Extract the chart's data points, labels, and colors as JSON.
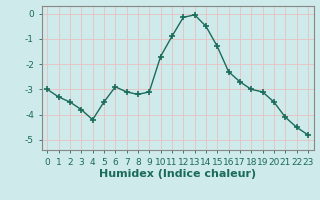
{
  "x": [
    0,
    1,
    2,
    3,
    4,
    5,
    6,
    7,
    8,
    9,
    10,
    11,
    12,
    13,
    14,
    15,
    16,
    17,
    18,
    19,
    20,
    21,
    22,
    23
  ],
  "y": [
    -3.0,
    -3.3,
    -3.5,
    -3.8,
    -4.2,
    -3.5,
    -2.9,
    -3.1,
    -3.2,
    -3.1,
    -1.7,
    -0.9,
    -0.15,
    -0.05,
    -0.5,
    -1.3,
    -2.3,
    -2.7,
    -3.0,
    -3.1,
    -3.5,
    -4.1,
    -4.5,
    -4.8
  ],
  "xlabel": "Humidex (Indice chaleur)",
  "xlim": [
    -0.5,
    23.5
  ],
  "ylim": [
    -5.4,
    0.3
  ],
  "yticks": [
    0,
    -1,
    -2,
    -3,
    -4,
    -5
  ],
  "xticks": [
    0,
    1,
    2,
    3,
    4,
    5,
    6,
    7,
    8,
    9,
    10,
    11,
    12,
    13,
    14,
    15,
    16,
    17,
    18,
    19,
    20,
    21,
    22,
    23
  ],
  "line_color": "#1a6b5a",
  "marker": "+",
  "marker_size": 4,
  "marker_lw": 1.2,
  "bg_color": "#ceeaea",
  "grid_color_major": "#e8c0c0",
  "grid_color_minor": "#e8c0c0",
  "tick_label_size": 6.5,
  "xlabel_size": 8,
  "xlabel_weight": "bold",
  "spine_color": "#888888",
  "line_width": 1.0
}
